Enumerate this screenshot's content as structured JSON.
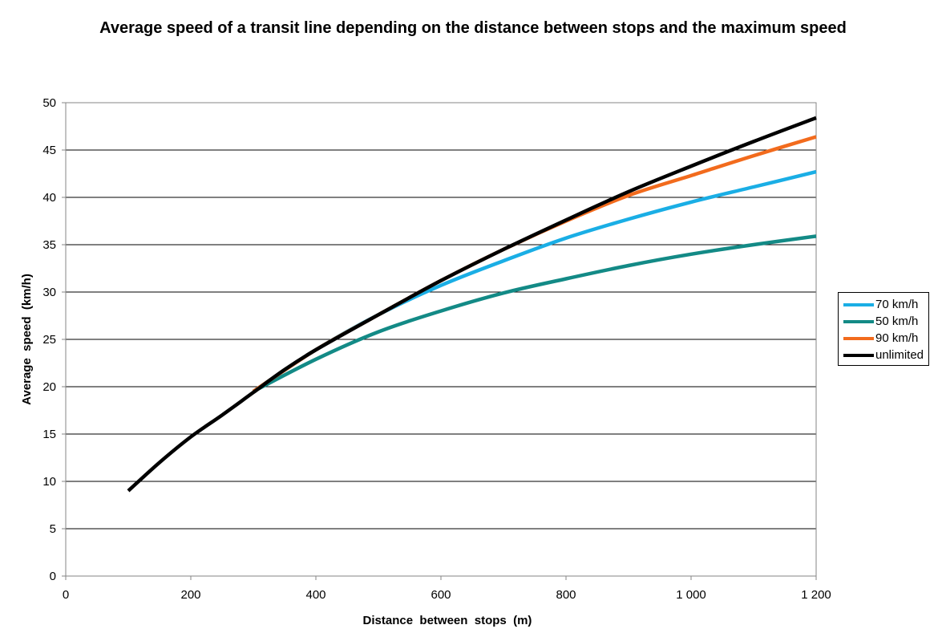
{
  "chart_data": {
    "type": "line",
    "title": "Average speed of a transit line depending on the distance between stops and the maximum speed",
    "xlabel": "Distance  between  stops  (m)",
    "ylabel": "Average  speed  (km/h)",
    "xlim": [
      0,
      1200
    ],
    "ylim": [
      0,
      50
    ],
    "x_ticks": [
      0,
      200,
      400,
      600,
      800,
      1000,
      1200
    ],
    "x_tick_labels": [
      "0",
      "200",
      "400",
      "600",
      "800",
      "1 000",
      "1 200"
    ],
    "y_ticks": [
      0,
      5,
      10,
      15,
      20,
      25,
      30,
      35,
      40,
      45,
      50
    ],
    "y_tick_labels": [
      "0",
      "5",
      "10",
      "15",
      "20",
      "25",
      "30",
      "35",
      "40",
      "45",
      "50"
    ],
    "grid": "horizontal",
    "legend_position": "right",
    "series": [
      {
        "name": "70 km/h",
        "color": "#1aaee5",
        "x": [
          300,
          400,
          500,
          600,
          700,
          800,
          900,
          1000,
          1100,
          1200
        ],
        "y": [
          19.5,
          23.9,
          27.6,
          30.7,
          33.3,
          35.7,
          37.7,
          39.5,
          41.1,
          42.7
        ]
      },
      {
        "name": "50 km/h",
        "color": "#138a86",
        "x": [
          300,
          400,
          500,
          600,
          700,
          800,
          900,
          1000,
          1100,
          1200
        ],
        "y": [
          19.5,
          22.9,
          25.8,
          28.0,
          29.9,
          31.4,
          32.8,
          34.0,
          35.0,
          35.9
        ]
      },
      {
        "name": "90 km/h",
        "color": "#f26b1d",
        "x": [
          300,
          400,
          500,
          600,
          700,
          800,
          900,
          1000,
          1100,
          1200
        ],
        "y": [
          19.5,
          23.9,
          27.6,
          31.2,
          34.5,
          37.5,
          40.2,
          42.3,
          44.4,
          46.4
        ]
      },
      {
        "name": "unlimited",
        "color": "#000000",
        "x": [
          100,
          150,
          200,
          250,
          300,
          350,
          400,
          500,
          600,
          700,
          800,
          900,
          1000,
          1100,
          1200
        ],
        "y": [
          9.0,
          12.0,
          14.7,
          17.0,
          19.4,
          21.8,
          23.9,
          27.6,
          31.2,
          34.5,
          37.6,
          40.6,
          43.3,
          45.9,
          48.4
        ]
      }
    ]
  }
}
